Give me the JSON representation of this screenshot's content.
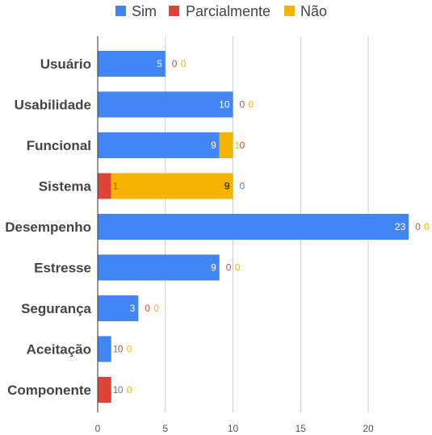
{
  "chart_data": {
    "type": "bar",
    "orientation": "horizontal",
    "stacked": true,
    "categories": [
      "Usuário",
      "Usabilidade",
      "Funcional",
      "Sistema",
      "Desempenho",
      "Estresse",
      "Segurança",
      "Aceitação",
      "Componente"
    ],
    "series": [
      {
        "name": "Sim",
        "color": "#4285f4",
        "values": [
          5,
          10,
          9,
          0,
          23,
          9,
          3,
          1,
          0
        ]
      },
      {
        "name": "Parcialmente",
        "color": "#db4437",
        "values": [
          0,
          0,
          0,
          1,
          0,
          0,
          0,
          0,
          1
        ]
      },
      {
        "name": "Não",
        "color": "#f4b400",
        "values": [
          0,
          0,
          1,
          9,
          0,
          0,
          0,
          0,
          0
        ]
      }
    ],
    "xlim": [
      0,
      25
    ],
    "xticks": [
      0,
      5,
      10,
      15,
      20
    ],
    "grid": true,
    "legend_position": "top",
    "title": "",
    "xlabel": "",
    "ylabel": ""
  }
}
